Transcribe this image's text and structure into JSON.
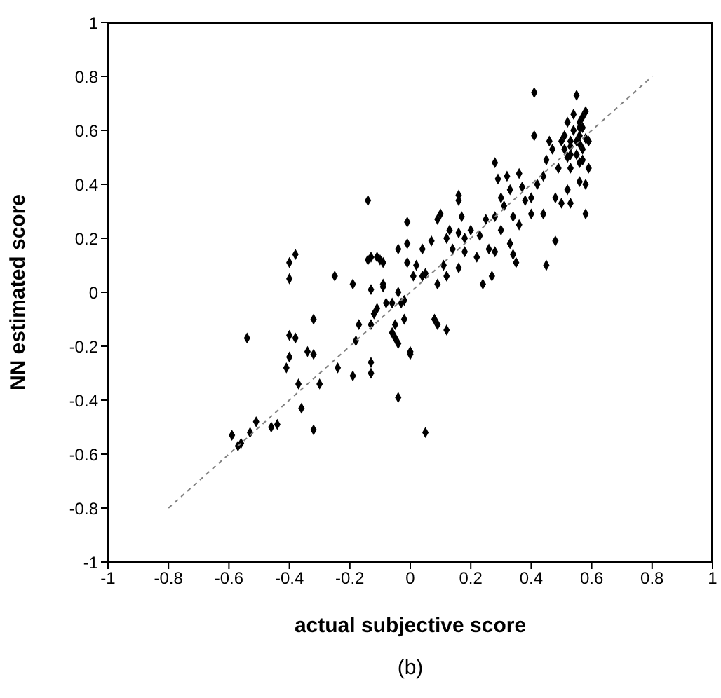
{
  "chart_data": {
    "type": "scatter",
    "xlabel": "actual subjective score",
    "ylabel": "NN estimated score",
    "annotations": [
      "(b)"
    ],
    "xlim": [
      -1,
      1
    ],
    "xticks": [
      -1,
      -0.8,
      -0.6,
      -0.4,
      -0.2,
      0,
      0.2,
      0.4,
      0.6,
      0.8,
      1
    ],
    "ylim": [
      -1,
      1
    ],
    "yticks": [
      -1,
      -0.8,
      -0.6,
      -0.4,
      -0.2,
      0,
      0.2,
      0.4,
      0.6,
      0.8,
      1
    ],
    "grid": false,
    "legend": false,
    "marker": "diamond",
    "series": [
      {
        "type": "scatter",
        "color": "#000000",
        "x": [
          -0.59,
          -0.57,
          -0.56,
          -0.53,
          -0.54,
          -0.51,
          -0.46,
          -0.44,
          -0.41,
          -0.4,
          -0.4,
          -0.4,
          -0.4,
          -0.38,
          -0.38,
          -0.37,
          -0.36,
          -0.34,
          -0.32,
          -0.32,
          -0.32,
          -0.3,
          -0.25,
          -0.24,
          -0.19,
          -0.19,
          -0.18,
          -0.17,
          -0.14,
          -0.14,
          -0.13,
          -0.13,
          -0.13,
          -0.13,
          -0.13,
          -0.11,
          -0.12,
          -0.11,
          -0.1,
          -0.09,
          -0.09,
          -0.09,
          -0.08,
          -0.06,
          -0.06,
          -0.05,
          -0.05,
          -0.04,
          -0.04,
          -0.04,
          -0.04,
          -0.03,
          -0.02,
          -0.02,
          -0.01,
          -0.01,
          -0.01,
          0.0,
          0.0,
          0.01,
          0.02,
          0.04,
          0.05,
          0.04,
          0.05,
          0.07,
          0.08,
          0.09,
          0.09,
          0.09,
          0.11,
          0.1,
          0.12,
          0.12,
          0.12,
          0.13,
          0.14,
          0.16,
          0.16,
          0.16,
          0.16,
          0.17,
          0.18,
          0.2,
          0.18,
          0.22,
          0.23,
          0.24,
          0.25,
          0.26,
          0.27,
          0.28,
          0.28,
          0.28,
          0.29,
          0.3,
          0.3,
          0.31,
          0.32,
          0.33,
          0.33,
          0.34,
          0.34,
          0.35,
          0.36,
          0.36,
          0.37,
          0.38,
          0.4,
          0.41,
          0.41,
          0.4,
          0.42,
          0.44,
          0.44,
          0.45,
          0.45,
          0.46,
          0.47,
          0.48,
          0.48,
          0.49,
          0.5,
          0.52,
          0.51,
          0.52,
          0.53,
          0.55,
          0.56,
          0.58,
          0.58,
          0.53,
          0.55,
          0.56,
          0.57,
          0.58,
          0.54,
          0.53,
          0.57,
          0.56,
          0.53,
          0.58,
          0.56,
          0.51,
          0.55,
          0.57,
          0.53,
          0.56,
          0.59,
          0.54,
          0.5,
          0.56,
          0.52,
          0.57,
          0.59
        ],
        "values": [
          -0.53,
          -0.57,
          -0.56,
          -0.52,
          -0.17,
          -0.48,
          -0.5,
          -0.49,
          -0.28,
          -0.16,
          -0.24,
          0.11,
          0.05,
          0.14,
          -0.17,
          -0.34,
          -0.43,
          -0.22,
          -0.23,
          -0.1,
          -0.51,
          -0.34,
          0.06,
          -0.28,
          0.03,
          -0.31,
          -0.18,
          -0.12,
          0.34,
          0.12,
          0.01,
          -0.26,
          -0.3,
          0.13,
          -0.12,
          0.13,
          -0.08,
          -0.06,
          0.12,
          0.03,
          0.11,
          0.02,
          -0.04,
          -0.04,
          -0.15,
          -0.17,
          -0.12,
          -0.39,
          0.0,
          -0.19,
          0.16,
          -0.04,
          -0.1,
          -0.03,
          0.26,
          0.18,
          0.11,
          -0.22,
          -0.23,
          0.06,
          0.1,
          0.06,
          0.07,
          0.16,
          -0.52,
          0.19,
          -0.1,
          0.03,
          0.27,
          -0.12,
          0.1,
          0.29,
          -0.14,
          0.06,
          0.2,
          0.23,
          0.16,
          0.09,
          0.22,
          0.36,
          0.34,
          0.28,
          0.15,
          0.23,
          0.2,
          0.13,
          0.21,
          0.03,
          0.27,
          0.16,
          0.06,
          0.48,
          0.15,
          0.28,
          0.42,
          0.35,
          0.23,
          0.32,
          0.43,
          0.18,
          0.38,
          0.28,
          0.14,
          0.11,
          0.44,
          0.25,
          0.39,
          0.34,
          0.35,
          0.74,
          0.58,
          0.29,
          0.4,
          0.43,
          0.29,
          0.1,
          0.49,
          0.56,
          0.53,
          0.19,
          0.35,
          0.46,
          0.33,
          0.38,
          0.58,
          0.63,
          0.33,
          0.73,
          0.41,
          0.4,
          0.29,
          0.51,
          0.56,
          0.61,
          0.65,
          0.67,
          0.6,
          0.54,
          0.53,
          0.48,
          0.46,
          0.57,
          0.63,
          0.53,
          0.51,
          0.49,
          0.56,
          0.55,
          0.46,
          0.66,
          0.56,
          0.58,
          0.5,
          0.61,
          0.56
        ]
      },
      {
        "type": "line",
        "color": "#808080",
        "line_style": "dashed",
        "marker": "none",
        "x": [
          -0.8,
          0.8
        ],
        "values": [
          -0.8,
          0.8
        ]
      }
    ]
  }
}
